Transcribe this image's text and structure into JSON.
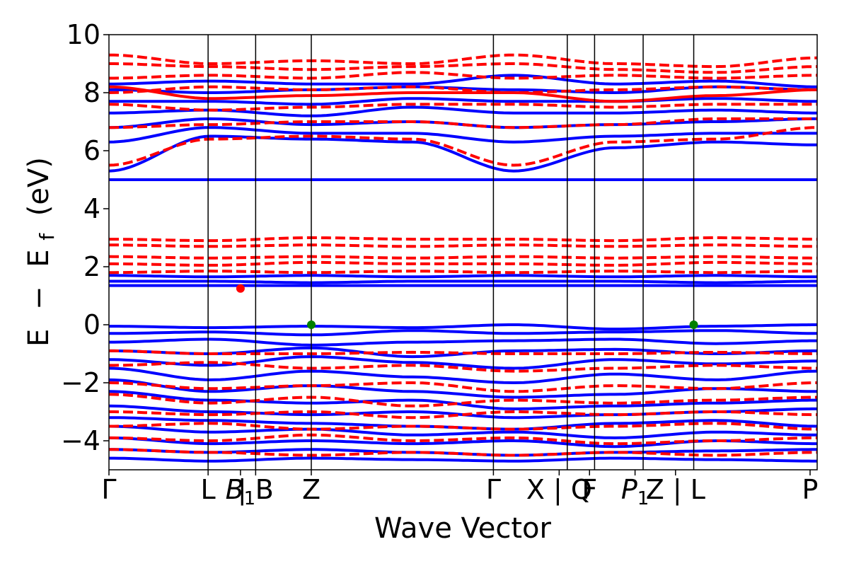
{
  "chart_data": {
    "type": "line",
    "title": "",
    "xlabel": "Wave Vector",
    "ylabel_parts": [
      "E",
      "−",
      "E",
      "f",
      "(eV)"
    ],
    "ylim": [
      -5,
      10
    ],
    "yticks": [
      -4,
      -2,
      0,
      2,
      4,
      6,
      8,
      10
    ],
    "ytick_labels": [
      "−4",
      "−2",
      "0",
      "2",
      "4",
      "6",
      "8",
      "10"
    ],
    "grid": false,
    "legend": "none",
    "xlim": [
      0,
      7.0
    ],
    "kpoints": [
      {
        "x": 0.0,
        "label": "Γ"
      },
      {
        "x": 0.98,
        "label": "L"
      },
      {
        "x": 1.3,
        "label": "B1",
        "italic": true,
        "text": "B",
        "sub": "1"
      },
      {
        "x": 1.45,
        "label": "| B"
      },
      {
        "x": 2.0,
        "label": "Z"
      },
      {
        "x": 3.8,
        "label": "Γ"
      },
      {
        "x": 4.45,
        "label": "X | Q"
      },
      {
        "x": 4.75,
        "label": "F"
      },
      {
        "x": 5.2,
        "label": "P1",
        "italic": true,
        "text": "P",
        "sub": "1"
      },
      {
        "x": 5.6,
        "label": "Z | L"
      },
      {
        "x": 6.93,
        "label": "P"
      }
    ],
    "vlines": [
      0.98,
      1.45,
      2.0,
      3.8,
      4.53,
      4.8,
      5.28,
      5.78
    ],
    "series": [
      {
        "name": "",
        "color": "#0000ff",
        "style": "solid",
        "bands": [
          [
            -0.05,
            -0.1,
            -0.05,
            -0.1,
            0.0,
            -0.15,
            -0.05,
            0.0
          ],
          [
            -0.3,
            -0.25,
            -0.35,
            -0.2,
            -0.3,
            -0.25,
            -0.2,
            -0.3
          ],
          [
            -0.6,
            -0.5,
            -0.7,
            -0.6,
            -0.55,
            -0.5,
            -0.65,
            -0.55
          ],
          [
            -0.9,
            -1.0,
            -0.8,
            -1.1,
            -0.9,
            -0.85,
            -1.0,
            -0.9
          ],
          [
            -1.2,
            -1.4,
            -1.1,
            -1.3,
            -1.5,
            -1.2,
            -1.35,
            -1.25
          ],
          [
            -1.5,
            -1.9,
            -1.6,
            -1.8,
            -2.0,
            -1.7,
            -1.9,
            -1.6
          ],
          [
            -1.9,
            -2.3,
            -2.1,
            -2.3,
            -2.5,
            -2.4,
            -2.2,
            -2.3
          ],
          [
            -2.3,
            -2.6,
            -2.7,
            -2.6,
            -2.9,
            -2.8,
            -2.7,
            -2.6
          ],
          [
            -2.8,
            -3.0,
            -3.1,
            -3.0,
            -3.2,
            -3.1,
            -3.0,
            -2.9
          ],
          [
            -3.2,
            -3.3,
            -3.4,
            -3.5,
            -3.6,
            -3.4,
            -3.3,
            -3.5
          ],
          [
            -3.5,
            -3.7,
            -3.6,
            -3.8,
            -3.7,
            -3.9,
            -3.7,
            -3.8
          ],
          [
            -3.9,
            -4.1,
            -4.0,
            -4.1,
            -4.0,
            -4.2,
            -4.0,
            -4.1
          ],
          [
            -4.3,
            -4.4,
            -4.3,
            -4.4,
            -4.5,
            -4.4,
            -4.35,
            -4.3
          ],
          [
            -4.6,
            -4.7,
            -4.6,
            -4.65,
            -4.7,
            -4.6,
            -4.65,
            -4.7
          ],
          [
            1.35,
            1.35,
            1.35,
            1.35,
            1.35,
            1.35,
            1.35,
            1.35
          ],
          [
            1.5,
            1.5,
            1.45,
            1.5,
            1.5,
            1.5,
            1.45,
            1.5
          ],
          [
            1.7,
            1.65,
            1.7,
            1.65,
            1.7,
            1.65,
            1.7,
            1.65
          ],
          [
            5.0,
            5.0,
            5.0,
            5.0,
            5.0,
            5.0,
            5.0,
            5.0
          ],
          [
            5.3,
            6.5,
            6.4,
            6.3,
            5.3,
            6.1,
            6.3,
            6.2
          ],
          [
            6.3,
            6.8,
            6.6,
            6.6,
            6.3,
            6.5,
            6.6,
            6.6
          ],
          [
            6.8,
            7.1,
            6.9,
            7.0,
            6.8,
            6.9,
            7.0,
            7.1
          ],
          [
            7.3,
            7.4,
            7.2,
            7.5,
            7.3,
            7.3,
            7.4,
            7.3
          ],
          [
            7.7,
            7.7,
            7.6,
            7.8,
            7.7,
            7.7,
            7.8,
            7.7
          ],
          [
            8.1,
            8.0,
            8.1,
            8.2,
            8.1,
            8.0,
            8.2,
            8.1
          ],
          [
            8.3,
            8.4,
            8.3,
            8.3,
            8.6,
            8.3,
            8.4,
            8.2
          ]
        ]
      },
      {
        "name": "",
        "color": "#ff0000",
        "style": "dashed",
        "bands": [
          [
            -0.9,
            -1.0,
            -1.0,
            -0.95,
            -1.0,
            -1.0,
            -0.95,
            -1.0
          ],
          [
            -1.4,
            -1.3,
            -1.5,
            -1.4,
            -1.6,
            -1.5,
            -1.4,
            -1.5
          ],
          [
            -2.0,
            -2.2,
            -2.1,
            -2.0,
            -2.3,
            -2.1,
            -2.2,
            -2.0
          ],
          [
            -2.4,
            -2.7,
            -2.5,
            -2.8,
            -2.6,
            -2.7,
            -2.6,
            -2.5
          ],
          [
            -3.0,
            -3.1,
            -3.0,
            -3.2,
            -3.0,
            -3.1,
            -3.0,
            -3.1
          ],
          [
            -3.5,
            -3.4,
            -3.6,
            -3.5,
            -3.6,
            -3.5,
            -3.4,
            -3.6
          ],
          [
            -3.9,
            -4.0,
            -3.8,
            -4.0,
            -3.9,
            -4.1,
            -4.0,
            -3.9
          ],
          [
            -4.3,
            -4.4,
            -4.5,
            -4.4,
            -4.5,
            -4.4,
            -4.5,
            -4.4
          ],
          [
            1.8,
            1.85,
            1.8,
            1.85,
            1.8,
            1.85,
            1.8,
            1.85
          ],
          [
            2.1,
            2.05,
            2.15,
            2.1,
            2.1,
            2.05,
            2.15,
            2.1
          ],
          [
            2.35,
            2.3,
            2.35,
            2.3,
            2.35,
            2.3,
            2.35,
            2.3
          ],
          [
            2.75,
            2.7,
            2.75,
            2.7,
            2.75,
            2.7,
            2.75,
            2.7
          ],
          [
            2.95,
            2.9,
            3.0,
            2.95,
            2.95,
            2.9,
            3.0,
            2.95
          ],
          [
            5.5,
            6.4,
            6.5,
            6.4,
            5.5,
            6.3,
            6.4,
            6.8
          ],
          [
            6.8,
            6.9,
            7.0,
            7.0,
            6.8,
            6.9,
            7.1,
            7.1
          ],
          [
            7.6,
            7.4,
            7.5,
            7.6,
            7.6,
            7.5,
            7.6,
            7.6
          ],
          [
            8.0,
            8.2,
            8.1,
            8.2,
            8.0,
            8.1,
            8.2,
            8.1
          ],
          [
            8.5,
            8.6,
            8.5,
            8.7,
            8.5,
            8.6,
            8.5,
            8.6
          ],
          [
            9.0,
            8.9,
            8.8,
            8.9,
            9.0,
            8.8,
            8.7,
            8.9
          ],
          [
            9.3,
            9.0,
            9.1,
            9.0,
            9.3,
            9.0,
            8.9,
            9.2
          ]
        ]
      },
      {
        "name": "",
        "color": "#ff0000",
        "style": "solid",
        "bands": [
          [
            8.2,
            7.8,
            7.9,
            8.0,
            8.0,
            7.7,
            7.9,
            8.1
          ]
        ]
      }
    ],
    "markers": [
      {
        "x": 1.3,
        "y": 1.25,
        "color": "#ff0000"
      },
      {
        "x": 2.0,
        "y": 0.0,
        "color": "#008000"
      },
      {
        "x": 5.78,
        "y": 0.0,
        "color": "#008000"
      }
    ]
  }
}
